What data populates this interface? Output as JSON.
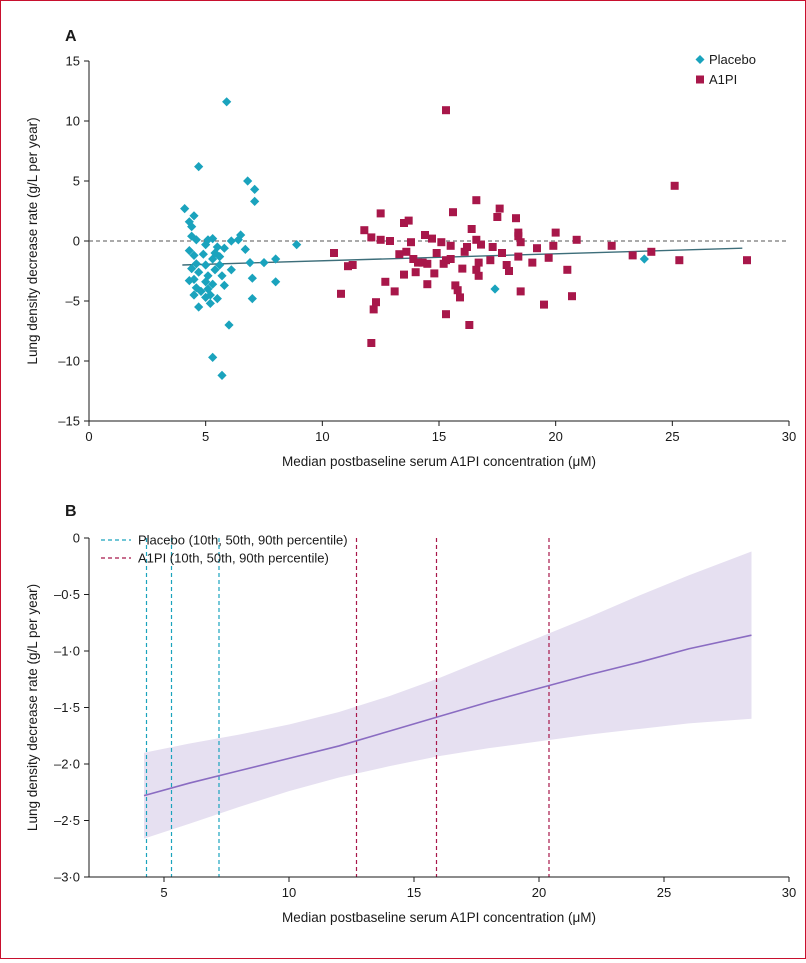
{
  "colors": {
    "placebo": "#1aa3bd",
    "a1pi": "#a8174a",
    "regression_line": "#3d6e7a",
    "fit_line": "#8a6cc2",
    "band": "#e6e0f1",
    "frame": "#c8102e"
  },
  "chart_data": [
    {
      "panel": "A",
      "type": "scatter",
      "xlabel": "Median postbaseline serum A1PI concentration (μM)",
      "ylabel": "Lung density decrease rate (g/L per year)",
      "xlim": [
        0,
        30
      ],
      "ylim": [
        -15,
        15
      ],
      "x_ticks": [
        0,
        5,
        10,
        15,
        20,
        25,
        30
      ],
      "y_ticks": [
        -15,
        -10,
        -5,
        0,
        5,
        10,
        15
      ],
      "x_tick_labels": [
        "0",
        "5",
        "10",
        "15",
        "20",
        "25",
        "30"
      ],
      "y_tick_labels": [
        "–15",
        "–10",
        "–5",
        "0",
        "5",
        "10",
        "15"
      ],
      "reference_line_y": 0,
      "legend_position": "top-right",
      "series": [
        {
          "name": "Placebo",
          "marker": "diamond",
          "points": [
            [
              4.1,
              2.7
            ],
            [
              4.3,
              1.6
            ],
            [
              4.4,
              1.2
            ],
            [
              4.4,
              0.4
            ],
            [
              4.5,
              2.1
            ],
            [
              4.6,
              0.1
            ],
            [
              4.7,
              6.2
            ],
            [
              4.3,
              -0.8
            ],
            [
              4.5,
              -1.2
            ],
            [
              4.6,
              -1.9
            ],
            [
              4.4,
              -2.3
            ],
            [
              4.7,
              -2.6
            ],
            [
              4.5,
              -3.2
            ],
            [
              4.3,
              -3.3
            ],
            [
              4.6,
              -3.9
            ],
            [
              4.5,
              -4.5
            ],
            [
              4.8,
              -4.2
            ],
            [
              4.7,
              -5.5
            ],
            [
              4.9,
              -1.1
            ],
            [
              5.0,
              -2.0
            ],
            [
              5.1,
              -2.9
            ],
            [
              5.0,
              -0.3
            ],
            [
              5.1,
              0.1
            ],
            [
              5.3,
              0.2
            ],
            [
              5.0,
              -3.4
            ],
            [
              5.1,
              -4.0
            ],
            [
              5.0,
              -4.7
            ],
            [
              5.2,
              -5.2
            ],
            [
              5.2,
              -4.5
            ],
            [
              5.3,
              -3.6
            ],
            [
              5.3,
              -1.5
            ],
            [
              5.4,
              -1.0
            ],
            [
              5.5,
              -0.5
            ],
            [
              5.4,
              -2.4
            ],
            [
              5.6,
              -1.3
            ],
            [
              5.6,
              -2.0
            ],
            [
              5.7,
              -2.9
            ],
            [
              5.8,
              -3.7
            ],
            [
              5.8,
              -0.6
            ],
            [
              5.5,
              -4.8
            ],
            [
              5.3,
              -9.7
            ],
            [
              5.7,
              -11.2
            ],
            [
              6.0,
              -7.0
            ],
            [
              5.9,
              11.6
            ],
            [
              6.1,
              0.0
            ],
            [
              6.1,
              -2.4
            ],
            [
              6.4,
              0.1
            ],
            [
              6.5,
              0.5
            ],
            [
              6.8,
              5.0
            ],
            [
              6.7,
              -0.7
            ],
            [
              6.9,
              -1.8
            ],
            [
              7.0,
              -3.1
            ],
            [
              7.0,
              -4.8
            ],
            [
              7.1,
              3.3
            ],
            [
              7.1,
              4.3
            ],
            [
              7.5,
              -1.8
            ],
            [
              8.0,
              -1.5
            ],
            [
              8.0,
              -3.4
            ],
            [
              8.9,
              -0.3
            ],
            [
              17.4,
              -4.0
            ],
            [
              23.8,
              -1.5
            ]
          ],
          "regression": [
            [
              4,
              -2.0
            ],
            [
              28,
              -0.6
            ]
          ]
        },
        {
          "name": "A1PI",
          "marker": "square",
          "points": [
            [
              10.5,
              -1.0
            ],
            [
              10.8,
              -4.4
            ],
            [
              11.1,
              -2.1
            ],
            [
              11.3,
              -2.0
            ],
            [
              11.8,
              0.9
            ],
            [
              12.1,
              0.3
            ],
            [
              12.1,
              -8.5
            ],
            [
              12.2,
              -5.7
            ],
            [
              12.3,
              -5.1
            ],
            [
              12.5,
              0.1
            ],
            [
              12.5,
              2.3
            ],
            [
              12.7,
              -3.4
            ],
            [
              12.9,
              0.0
            ],
            [
              13.1,
              -4.2
            ],
            [
              13.3,
              -1.1
            ],
            [
              13.5,
              -2.8
            ],
            [
              13.5,
              1.5
            ],
            [
              13.6,
              -0.9
            ],
            [
              13.7,
              1.7
            ],
            [
              13.8,
              -0.1
            ],
            [
              13.9,
              -1.5
            ],
            [
              14.0,
              -2.6
            ],
            [
              14.1,
              -1.8
            ],
            [
              14.3,
              -1.8
            ],
            [
              14.4,
              0.5
            ],
            [
              14.5,
              -1.9
            ],
            [
              14.5,
              -3.6
            ],
            [
              14.7,
              0.2
            ],
            [
              14.8,
              -2.7
            ],
            [
              14.9,
              -1.0
            ],
            [
              15.1,
              -0.1
            ],
            [
              15.2,
              -1.9
            ],
            [
              15.3,
              10.9
            ],
            [
              15.3,
              -1.6
            ],
            [
              15.3,
              -6.1
            ],
            [
              15.5,
              -0.4
            ],
            [
              15.5,
              -1.5
            ],
            [
              15.6,
              2.4
            ],
            [
              15.7,
              -3.7
            ],
            [
              15.8,
              -4.1
            ],
            [
              15.9,
              -4.7
            ],
            [
              16.0,
              -2.3
            ],
            [
              16.1,
              -0.9
            ],
            [
              16.2,
              -0.5
            ],
            [
              16.3,
              -7.0
            ],
            [
              16.4,
              1.0
            ],
            [
              16.6,
              0.1
            ],
            [
              16.6,
              3.4
            ],
            [
              16.6,
              -2.4
            ],
            [
              16.7,
              -1.8
            ],
            [
              16.7,
              -2.9
            ],
            [
              16.8,
              -0.3
            ],
            [
              17.2,
              -1.6
            ],
            [
              17.3,
              -0.5
            ],
            [
              17.5,
              2.0
            ],
            [
              17.6,
              2.7
            ],
            [
              17.7,
              -1.0
            ],
            [
              17.9,
              -2.0
            ],
            [
              18.0,
              -2.5
            ],
            [
              18.3,
              1.9
            ],
            [
              18.4,
              0.4
            ],
            [
              18.4,
              0.7
            ],
            [
              18.4,
              -1.3
            ],
            [
              18.5,
              -4.2
            ],
            [
              18.5,
              -0.1
            ],
            [
              19.0,
              -1.8
            ],
            [
              19.2,
              -0.6
            ],
            [
              19.5,
              -5.3
            ],
            [
              19.7,
              -1.4
            ],
            [
              19.9,
              -0.4
            ],
            [
              20.0,
              0.7
            ],
            [
              20.5,
              -2.4
            ],
            [
              20.7,
              -4.6
            ],
            [
              20.9,
              0.1
            ],
            [
              22.4,
              -0.4
            ],
            [
              23.3,
              -1.2
            ],
            [
              24.1,
              -0.9
            ],
            [
              25.1,
              4.6
            ],
            [
              25.3,
              -1.6
            ],
            [
              28.2,
              -1.6
            ]
          ]
        }
      ]
    },
    {
      "panel": "B",
      "type": "line",
      "xlabel": "Median postbaseline serum A1PI concentration (μM)",
      "ylabel": "Lung density decrease rate (g/L per year)",
      "xlim": [
        2,
        30
      ],
      "ylim": [
        -3.0,
        0
      ],
      "x_ticks": [
        5,
        10,
        15,
        20,
        25,
        30
      ],
      "y_ticks": [
        0,
        -0.5,
        -1.0,
        -1.5,
        -2.0,
        -2.5,
        -3.0
      ],
      "x_tick_labels": [
        "5",
        "10",
        "15",
        "20",
        "25",
        "30"
      ],
      "y_tick_labels": [
        "0",
        "–0·5",
        "–1·0",
        "–1·5",
        "–2·0",
        "–2·5",
        "–3·0"
      ],
      "legend_position": "top-left",
      "series": [
        {
          "name": "fit",
          "x": [
            4.2,
            6,
            8,
            10,
            12,
            14,
            16,
            18,
            20,
            22,
            24,
            26,
            28.5
          ],
          "y": [
            -2.28,
            -2.17,
            -2.06,
            -1.95,
            -1.84,
            -1.71,
            -1.58,
            -1.45,
            -1.33,
            -1.21,
            -1.1,
            -0.98,
            -0.86
          ],
          "ci_upper": [
            -1.9,
            -1.82,
            -1.74,
            -1.65,
            -1.54,
            -1.4,
            -1.24,
            -1.06,
            -0.88,
            -0.7,
            -0.51,
            -0.33,
            -0.12
          ],
          "ci_lower": [
            -2.66,
            -2.53,
            -2.38,
            -2.24,
            -2.12,
            -2.02,
            -1.93,
            -1.86,
            -1.8,
            -1.74,
            -1.69,
            -1.64,
            -1.6
          ]
        }
      ],
      "percentile_lines": [
        {
          "name": "Placebo (10th, 50th, 90th percentile)",
          "group": "placebo",
          "x": [
            4.3,
            5.3,
            7.2
          ]
        },
        {
          "name": "A1PI (10th, 50th, 90th percentile)",
          "group": "a1pi",
          "x": [
            12.7,
            15.9,
            20.4
          ]
        }
      ]
    }
  ]
}
